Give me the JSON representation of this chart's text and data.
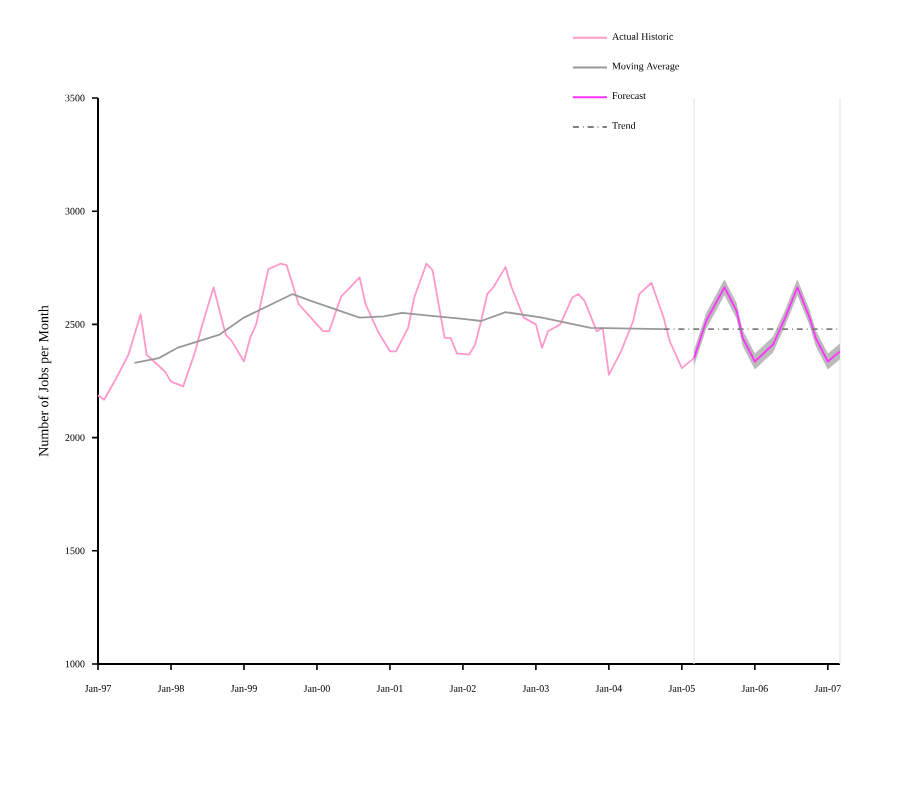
{
  "chart_data": {
    "type": "line",
    "ylabel": "Number of Jobs per Month",
    "xlim": [
      "1997-01",
      "2007-03"
    ],
    "xticks": [
      {
        "value": "1997-01",
        "label": "Jan-97"
      },
      {
        "value": "1998-01",
        "label": "Jan-98"
      },
      {
        "value": "1999-01",
        "label": "Jan-99"
      },
      {
        "value": "2000-01",
        "label": "Jan-00"
      },
      {
        "value": "2001-01",
        "label": "Jan-01"
      },
      {
        "value": "2002-01",
        "label": "Jan-02"
      },
      {
        "value": "2003-01",
        "label": "Jan-03"
      },
      {
        "value": "2004-01",
        "label": "Jan-04"
      },
      {
        "value": "2005-01",
        "label": "Jan-05"
      },
      {
        "value": "2006-01",
        "label": "Jan-06"
      },
      {
        "value": "2007-01",
        "label": "Jan-07"
      }
    ],
    "ylim": [
      1000,
      3500
    ],
    "yticks": [
      1000,
      1500,
      2000,
      2500,
      3000,
      3500
    ],
    "grid": false,
    "legend": "top right",
    "marker": "none",
    "ref_lines": [
      {
        "axis": "x",
        "value": "2005-03",
        "label": null,
        "color": "#e6e6e6"
      },
      {
        "axis": "x",
        "value": "2007-03",
        "label": null,
        "color": "#e6e6e6"
      }
    ],
    "series": [
      {
        "name": "Actual Historic",
        "color": "#ff99cc",
        "line_style": "solid",
        "x": [
          "1997-01",
          "1997-02",
          "1997-04",
          "1997-06",
          "1997-08",
          "1997-09",
          "1997-12",
          "1998-01",
          "1998-03",
          "1998-05",
          "1998-06",
          "1998-08",
          "1998-10",
          "1998-11",
          "1999-01",
          "1999-02",
          "1999-03",
          "1999-05",
          "1999-07",
          "1999-08",
          "1999-10",
          "1999-12",
          "2000-02",
          "2000-03",
          "2000-05",
          "2000-06",
          "2000-08",
          "2000-09",
          "2000-11",
          "2001-01",
          "2001-02",
          "2001-04",
          "2001-05",
          "2001-07",
          "2001-08",
          "2001-10",
          "2001-11",
          "2001-12",
          "2002-02",
          "2002-03",
          "2002-04",
          "2002-05",
          "2002-06",
          "2002-08",
          "2002-09",
          "2002-11",
          "2003-01",
          "2003-02",
          "2003-03",
          "2003-05",
          "2003-07",
          "2003-08",
          "2003-09",
          "2003-11",
          "2003-12",
          "2004-01",
          "2004-03",
          "2004-05",
          "2004-06",
          "2004-08",
          "2004-10",
          "2004-11",
          "2005-01",
          "2005-03"
        ],
        "values": [
          2187,
          2167,
          2262,
          2366,
          2545,
          2366,
          2292,
          2247,
          2226,
          2381,
          2485,
          2664,
          2455,
          2426,
          2336,
          2440,
          2500,
          2744,
          2768,
          2762,
          2589,
          2530,
          2470,
          2470,
          2625,
          2650,
          2708,
          2589,
          2470,
          2381,
          2381,
          2485,
          2619,
          2768,
          2740,
          2440,
          2440,
          2372,
          2366,
          2410,
          2515,
          2634,
          2664,
          2753,
          2664,
          2530,
          2500,
          2396,
          2470,
          2500,
          2619,
          2634,
          2604,
          2470,
          2485,
          2277,
          2381,
          2515,
          2634,
          2684,
          2530,
          2426,
          2307,
          2351
        ]
      },
      {
        "name": "Moving Average",
        "color": "#999999",
        "line_style": "solid",
        "x": [
          "1997-07",
          "1997-11",
          "1998-02",
          "1998-09",
          "1999-01",
          "1999-09",
          "1999-12",
          "2000-08",
          "2000-12",
          "2001-03",
          "2001-07",
          "2002-01",
          "2002-04",
          "2002-08",
          "2003-02",
          "2003-10",
          "2004-10"
        ],
        "values": [
          2330,
          2351,
          2396,
          2455,
          2530,
          2634,
          2604,
          2530,
          2535,
          2551,
          2540,
          2524,
          2515,
          2554,
          2530,
          2485,
          2479
        ]
      },
      {
        "name": "Forecast",
        "color": "#ff33ff",
        "line_style": "solid",
        "x": [
          "2005-03",
          "2005-05",
          "2005-08",
          "2005-10",
          "2005-11",
          "2006-01",
          "2006-04",
          "2006-06",
          "2006-08",
          "2006-10",
          "2006-11",
          "2007-01",
          "2007-03"
        ],
        "values": [
          2351,
          2515,
          2664,
          2560,
          2440,
          2336,
          2411,
          2530,
          2664,
          2530,
          2440,
          2336,
          2381
        ],
        "lower": [
          2316,
          2480,
          2629,
          2525,
          2405,
          2301,
          2376,
          2495,
          2629,
          2495,
          2405,
          2301,
          2346
        ],
        "upper": [
          2386,
          2550,
          2699,
          2595,
          2475,
          2371,
          2446,
          2565,
          2699,
          2565,
          2475,
          2371,
          2416
        ]
      },
      {
        "name": "Trend",
        "color": "#808080",
        "line_style": "dashdot",
        "x": [
          "2004-10",
          "2007-03"
        ],
        "values": [
          2479,
          2479
        ]
      }
    ]
  }
}
